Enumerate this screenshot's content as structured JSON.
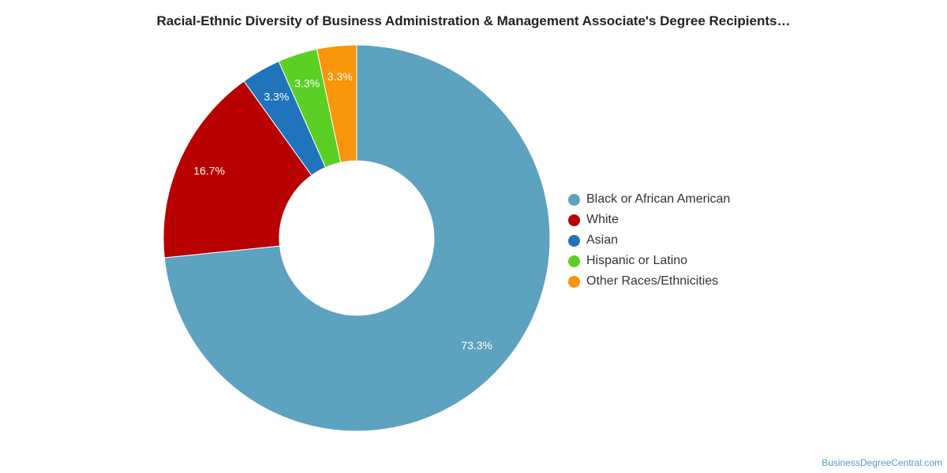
{
  "chart_data": {
    "type": "pie",
    "title": "Racial-Ethnic Diversity of Business Administration & Management Associate's Degree Recipients…",
    "categories": [
      "Black or African American",
      "White",
      "Asian",
      "Hispanic or Latino",
      "Other Races/Ethnicities"
    ],
    "values": [
      73.3,
      16.7,
      3.3,
      3.3,
      3.3
    ],
    "value_labels": [
      "73.3%",
      "16.7%",
      "3.3%",
      "3.3%",
      "3.3%"
    ],
    "colors": [
      "#5da2be",
      "#b80000",
      "#1f74bb",
      "#5ccf24",
      "#f7950b"
    ],
    "donut": true,
    "legend_position": "right"
  },
  "watermark": "BusinessDegreeCentral.com"
}
